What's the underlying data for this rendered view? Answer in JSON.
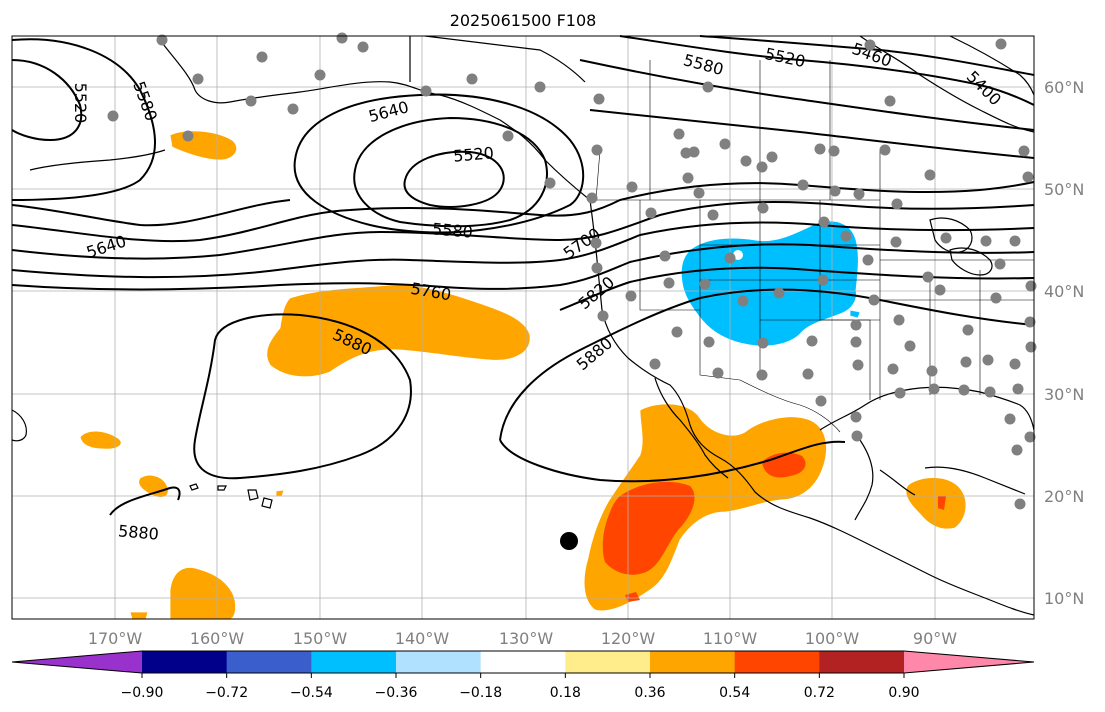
{
  "title": "2025061500 F108",
  "map": {
    "lon_labels": [
      "170°W",
      "160°W",
      "150°W",
      "140°W",
      "130°W",
      "120°W",
      "110°W",
      "100°W",
      "90°W"
    ],
    "lat_labels": [
      "60°N",
      "50°N",
      "40°N",
      "30°N",
      "20°N",
      "10°N"
    ],
    "contour_labels": [
      "5520",
      "5580",
      "5640",
      "5520",
      "5580",
      "5640",
      "5580",
      "5520",
      "5460",
      "5400",
      "5700",
      "5760",
      "5820",
      "5880",
      "5880",
      "5880"
    ],
    "colors": {
      "orange": "#ffa500",
      "red_orange": "#ff4500",
      "deep_sky_blue": "#00bfff",
      "station_gray": "#808080",
      "grid_gray": "#b0b0b0"
    }
  },
  "colorbar": {
    "tick_labels": [
      "−0.90",
      "−0.72",
      "−0.54",
      "−0.36",
      "−0.18",
      "0.18",
      "0.36",
      "0.54",
      "0.72",
      "0.90"
    ],
    "colors": [
      "#9932cc",
      "#00008b",
      "#3a5fcd",
      "#00bfff",
      "#b0e2ff",
      "#ffffff",
      "#ffec8b",
      "#ffa500",
      "#ff4500",
      "#b22222",
      "#ff88aa"
    ]
  }
}
